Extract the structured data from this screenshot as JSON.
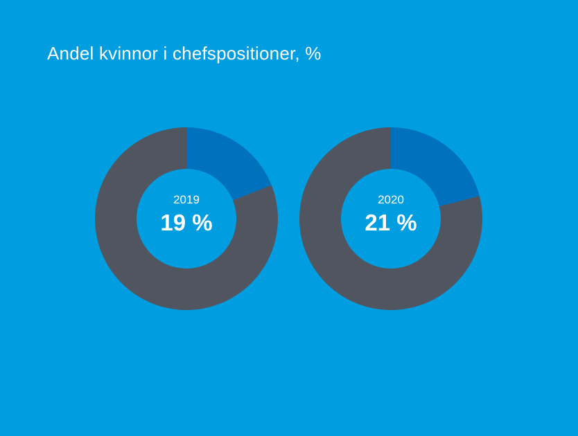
{
  "page": {
    "title": "Andel kvinnor i chefspositioner, %"
  },
  "colors": {
    "background": "#009ee0",
    "women": "#0071bc",
    "rest": "#505560",
    "text": "#ffffff"
  },
  "chart_data": [
    {
      "type": "pie",
      "title": "",
      "center_label": "2019",
      "value_label": "19 %",
      "slices": [
        {
          "value": 19,
          "color": "#0071bc"
        },
        {
          "value": 81,
          "color": "#505560"
        }
      ]
    },
    {
      "type": "pie",
      "title": "",
      "center_label": "2020",
      "value_label": "21 %",
      "slices": [
        {
          "value": 21,
          "color": "#0071bc"
        },
        {
          "value": 79,
          "color": "#505560"
        }
      ]
    }
  ]
}
